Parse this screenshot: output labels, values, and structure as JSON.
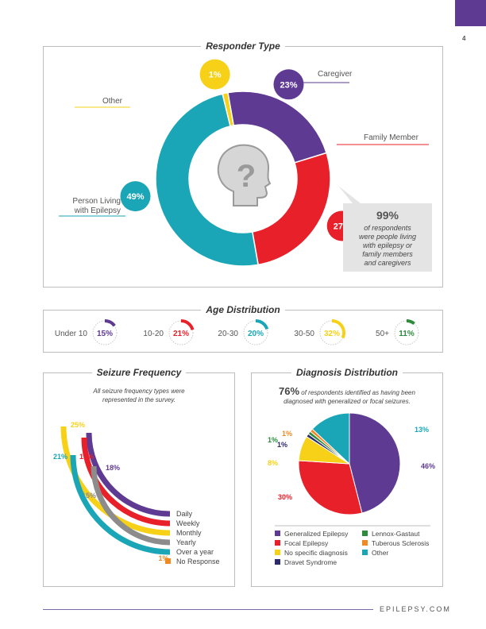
{
  "page": {
    "number": "4",
    "footer": "EPILEPSY.COM"
  },
  "responder": {
    "title": "Responder Type",
    "callout": {
      "big": "99%",
      "lines": [
        "of respondents",
        "were people living",
        "with epilepsy or",
        "family members",
        "and caregivers"
      ]
    }
  },
  "age": {
    "title": "Age Distribution"
  },
  "seizure": {
    "title": "Seizure Frequency",
    "subtitle": [
      "All seizure frequency types were",
      "represented in the survey."
    ]
  },
  "diagnosis": {
    "title": "Diagnosis Distribution",
    "headline_pct": "76%",
    "headline_lines": [
      "of respondents identified as having been",
      "diagnosed with generalized or focal seizures."
    ]
  },
  "chart_data": [
    {
      "type": "pie",
      "title": "Responder Type",
      "slices": [
        {
          "label": "Caregiver",
          "value": 23,
          "value_label": "23%",
          "color": "#5f3a92"
        },
        {
          "label": "Family Member",
          "value": 27,
          "value_label": "27%",
          "color": "#e8202a"
        },
        {
          "label": "Person Living with Epilepsy",
          "value": 49,
          "value_label": "49%",
          "color": "#1aa6b7"
        },
        {
          "label": "Other",
          "value": 1,
          "value_label": "1%",
          "color": "#f7d117"
        }
      ]
    },
    {
      "type": "bar",
      "title": "Age Distribution",
      "categories": [
        "Under 10",
        "10-20",
        "20-30",
        "30-50",
        "50+"
      ],
      "values": [
        15,
        21,
        20,
        32,
        11
      ],
      "value_labels": [
        "15%",
        "21%",
        "20%",
        "32%",
        "11%"
      ],
      "colors": [
        "#5f3a92",
        "#e8202a",
        "#1aa6b7",
        "#f7d117",
        "#2e8b3e"
      ]
    },
    {
      "type": "bar",
      "title": "Seizure Frequency",
      "categories": [
        "Daily",
        "Weekly",
        "Monthly",
        "Yearly",
        "Over a year",
        "No Response"
      ],
      "values": [
        18,
        19,
        25,
        15,
        21,
        1
      ],
      "value_labels": [
        "18%",
        "19%",
        "25%",
        "15%",
        "21%",
        "1%"
      ],
      "colors": [
        "#5f3a92",
        "#e8202a",
        "#f7d117",
        "#8c8c8c",
        "#1aa6b7",
        "#f08a24"
      ]
    },
    {
      "type": "pie",
      "title": "Diagnosis Distribution",
      "slices": [
        {
          "label": "Generalized Epilepsy",
          "value": 46,
          "value_label": "46%",
          "color": "#5f3a92"
        },
        {
          "label": "Focal Epilepsy",
          "value": 30,
          "value_label": "30%",
          "color": "#e8202a"
        },
        {
          "label": "No specific diagnosis",
          "value": 8,
          "value_label": "8%",
          "color": "#f7d117"
        },
        {
          "label": "Dravet Syndrome",
          "value": 1,
          "value_label": "1%",
          "color": "#2b2a6b"
        },
        {
          "label": "Lennox-Gastaut",
          "value": 1,
          "value_label": "1%",
          "color": "#2e8b3e"
        },
        {
          "label": "Tuberous Sclerosis",
          "value": 1,
          "value_label": "1%",
          "color": "#f08a24"
        },
        {
          "label": "Other",
          "value": 13,
          "value_label": "13%",
          "color": "#1aa6b7"
        }
      ],
      "legend": [
        "Generalized Epilepsy",
        "Lennox-Gastaut",
        "Focal Epilepsy",
        "Tuberous Sclerosis",
        "No specific diagnosis",
        "Other",
        "Dravet Syndrome"
      ]
    }
  ]
}
